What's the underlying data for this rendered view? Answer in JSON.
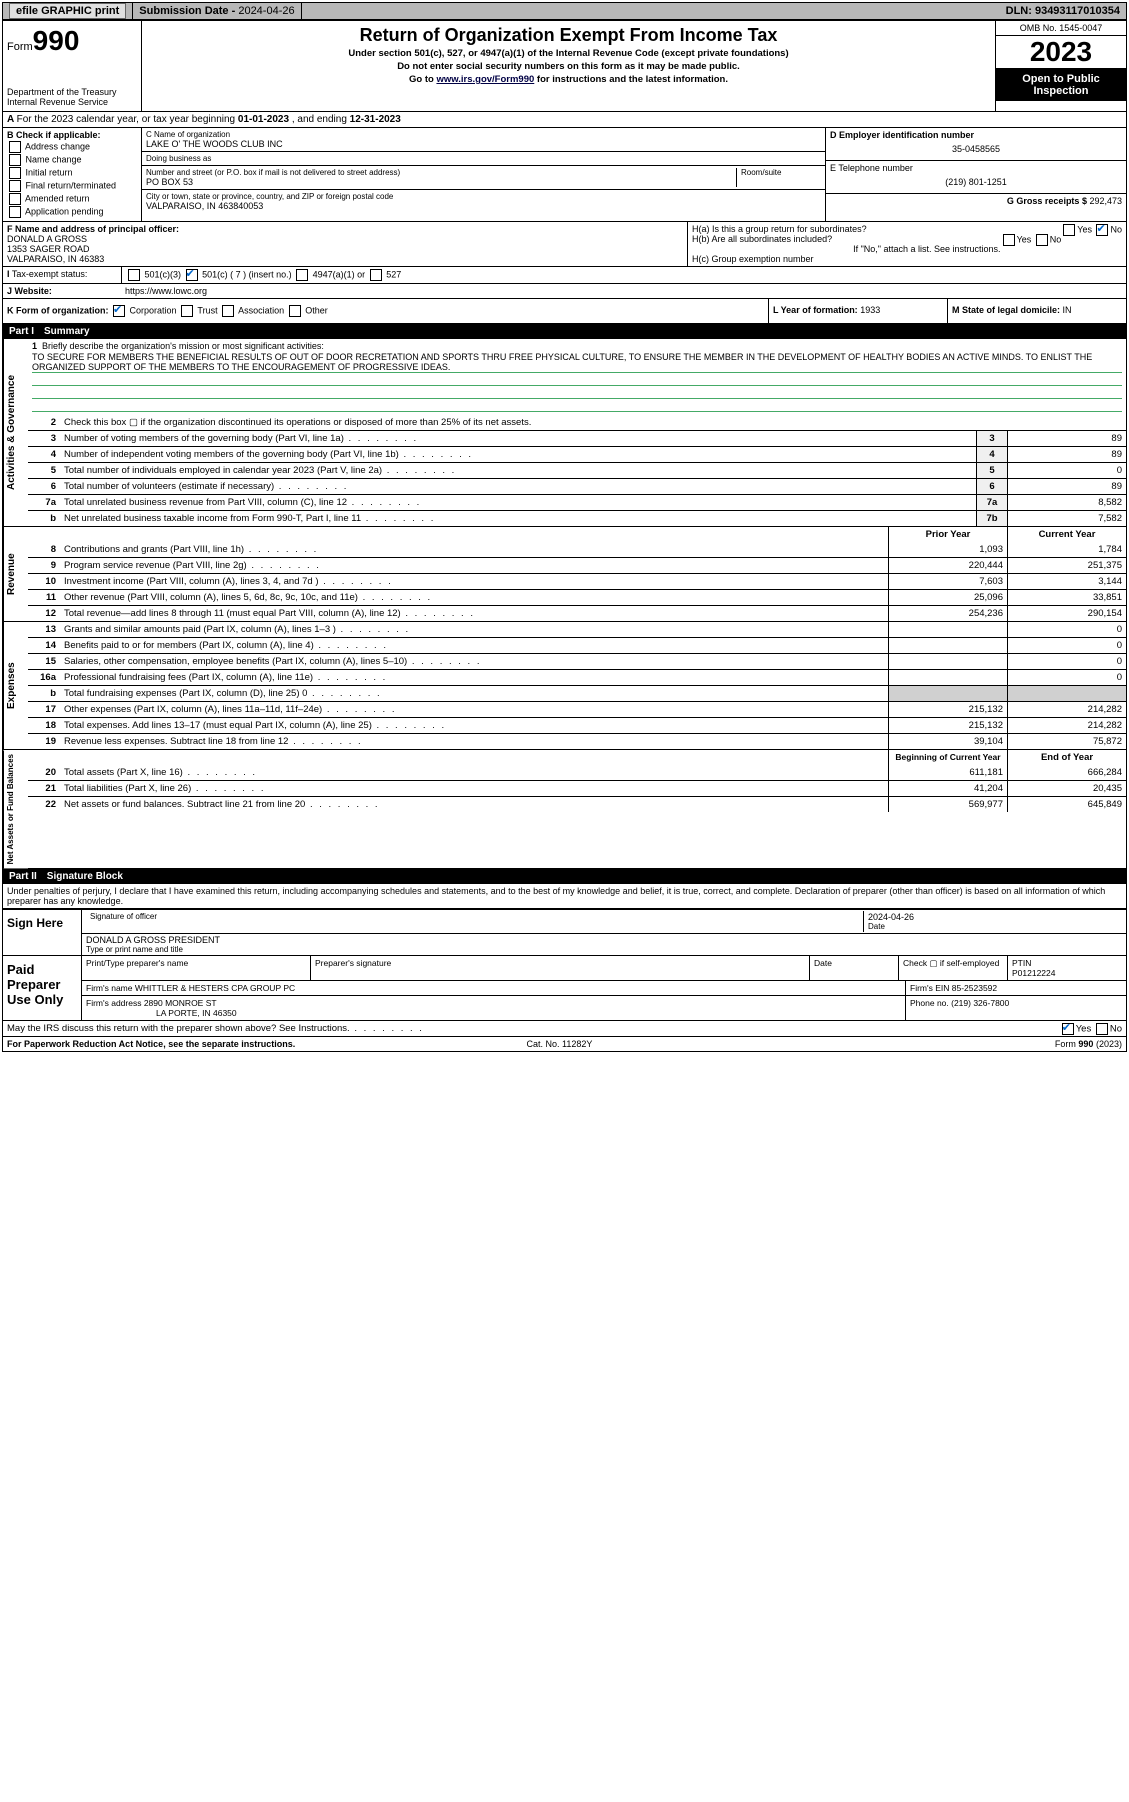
{
  "top": {
    "efile": "efile GRAPHIC print",
    "submission_label": "Submission Date - ",
    "submission_date": "2024-04-26",
    "dln_label": "DLN: ",
    "dln": "93493117010354"
  },
  "header": {
    "form_label": "Form",
    "form_num": "990",
    "dept": "Department of the Treasury\nInternal Revenue Service",
    "title": "Return of Organization Exempt From Income Tax",
    "sub1": "Under section 501(c), 527, or 4947(a)(1) of the Internal Revenue Code (except private foundations)",
    "sub2": "Do not enter social security numbers on this form as it may be made public.",
    "sub3_pre": "Go to ",
    "sub3_link": "www.irs.gov/Form990",
    "sub3_post": " for instructions and the latest information.",
    "omb": "OMB No. 1545-0047",
    "year": "2023",
    "inspect": "Open to Public Inspection"
  },
  "A": {
    "text": "For the 2023 calendar year, or tax year beginning ",
    "begin": "01-01-2023",
    "mid": " , and ending ",
    "end": "12-31-2023"
  },
  "B": {
    "label": "B Check if applicable:",
    "opts": [
      "Address change",
      "Name change",
      "Initial return",
      "Final return/terminated",
      "Amended return",
      "Application pending"
    ]
  },
  "C": {
    "name_label": "C Name of organization",
    "name": "LAKE O' THE WOODS CLUB INC",
    "dba_label": "Doing business as",
    "dba": "",
    "street_label": "Number and street (or P.O. box if mail is not delivered to street address)",
    "room_label": "Room/suite",
    "street": "PO BOX 53",
    "city_label": "City or town, state or province, country, and ZIP or foreign postal code",
    "city": "VALPARAISO, IN  463840053"
  },
  "D": {
    "label": "D Employer identification number",
    "val": "35-0458565"
  },
  "E": {
    "label": "E Telephone number",
    "val": "(219) 801-1251"
  },
  "G": {
    "label": "G Gross receipts $ ",
    "val": "292,473"
  },
  "F": {
    "label": "F Name and address of principal officer:",
    "name": "DONALD A GROSS",
    "addr1": "1353 SAGER ROAD",
    "addr2": "VALPARAISO, IN  46383"
  },
  "H": {
    "a": "H(a)  Is this a group return for subordinates?",
    "b": "H(b)  Are all subordinates included?",
    "b_note": "If \"No,\" attach a list. See instructions.",
    "c": "H(c)  Group exemption number ",
    "yes": "Yes",
    "no": "No"
  },
  "I": {
    "label": "Tax-exempt status:",
    "o1": "501(c)(3)",
    "o2": "501(c) ( 7 ) (insert no.)",
    "o3": "4947(a)(1) or",
    "o4": "527"
  },
  "J": {
    "label": "Website:",
    "val": "https://www.lowc.org"
  },
  "K": {
    "label": "K Form of organization:",
    "o": [
      "Corporation",
      "Trust",
      "Association",
      "Other"
    ]
  },
  "L": {
    "label": "L Year of formation: ",
    "val": "1933"
  },
  "M": {
    "label": "M State of legal domicile: ",
    "val": "IN"
  },
  "part1": {
    "num": "Part I",
    "title": "Summary"
  },
  "mission": {
    "q": "Briefly describe the organization's mission or most significant activities:",
    "text": "TO SECURE FOR MEMBERS THE BENEFICIAL RESULTS OF OUT OF DOOR RECRETATION AND SPORTS THRU FREE PHYSICAL CULTURE, TO ENSURE THE MEMBER IN THE DEVELOPMENT OF HEALTHY BODIES AN ACTIVE MINDS. TO ENLIST THE ORGANIZED SUPPORT OF THE MEMBERS TO THE ENCOURAGEMENT OF PROGRESSIVE IDEAS."
  },
  "lines_gov": [
    {
      "n": "2",
      "d": "Check this box ▢ if the organization discontinued its operations or disposed of more than 25% of its net assets.",
      "box": "",
      "v": ""
    },
    {
      "n": "3",
      "d": "Number of voting members of the governing body (Part VI, line 1a)",
      "box": "3",
      "v": "89"
    },
    {
      "n": "4",
      "d": "Number of independent voting members of the governing body (Part VI, line 1b)",
      "box": "4",
      "v": "89"
    },
    {
      "n": "5",
      "d": "Total number of individuals employed in calendar year 2023 (Part V, line 2a)",
      "box": "5",
      "v": "0"
    },
    {
      "n": "6",
      "d": "Total number of volunteers (estimate if necessary)",
      "box": "6",
      "v": "89"
    },
    {
      "n": "7a",
      "d": "Total unrelated business revenue from Part VIII, column (C), line 12",
      "box": "7a",
      "v": "8,582"
    },
    {
      "n": "b",
      "d": "Net unrelated business taxable income from Form 990-T, Part I, line 11",
      "box": "7b",
      "v": "7,582"
    }
  ],
  "col_headers": {
    "prior": "Prior Year",
    "current": "Current Year"
  },
  "lines_rev": [
    {
      "n": "8",
      "d": "Contributions and grants (Part VIII, line 1h)",
      "p": "1,093",
      "c": "1,784"
    },
    {
      "n": "9",
      "d": "Program service revenue (Part VIII, line 2g)",
      "p": "220,444",
      "c": "251,375"
    },
    {
      "n": "10",
      "d": "Investment income (Part VIII, column (A), lines 3, 4, and 7d )",
      "p": "7,603",
      "c": "3,144"
    },
    {
      "n": "11",
      "d": "Other revenue (Part VIII, column (A), lines 5, 6d, 8c, 9c, 10c, and 11e)",
      "p": "25,096",
      "c": "33,851"
    },
    {
      "n": "12",
      "d": "Total revenue—add lines 8 through 11 (must equal Part VIII, column (A), line 12)",
      "p": "254,236",
      "c": "290,154"
    }
  ],
  "lines_exp": [
    {
      "n": "13",
      "d": "Grants and similar amounts paid (Part IX, column (A), lines 1–3 )",
      "p": "",
      "c": "0"
    },
    {
      "n": "14",
      "d": "Benefits paid to or for members (Part IX, column (A), line 4)",
      "p": "",
      "c": "0"
    },
    {
      "n": "15",
      "d": "Salaries, other compensation, employee benefits (Part IX, column (A), lines 5–10)",
      "p": "",
      "c": "0"
    },
    {
      "n": "16a",
      "d": "Professional fundraising fees (Part IX, column (A), line 11e)",
      "p": "",
      "c": "0"
    },
    {
      "n": "b",
      "d": "Total fundraising expenses (Part IX, column (D), line 25) 0",
      "p": "BLANK",
      "c": "BLANK"
    },
    {
      "n": "17",
      "d": "Other expenses (Part IX, column (A), lines 11a–11d, 11f–24e)",
      "p": "215,132",
      "c": "214,282"
    },
    {
      "n": "18",
      "d": "Total expenses. Add lines 13–17 (must equal Part IX, column (A), line 25)",
      "p": "215,132",
      "c": "214,282"
    },
    {
      "n": "19",
      "d": "Revenue less expenses. Subtract line 18 from line 12",
      "p": "39,104",
      "c": "75,872"
    }
  ],
  "col_headers2": {
    "prior": "Beginning of Current Year",
    "current": "End of Year"
  },
  "lines_net": [
    {
      "n": "20",
      "d": "Total assets (Part X, line 16)",
      "p": "611,181",
      "c": "666,284"
    },
    {
      "n": "21",
      "d": "Total liabilities (Part X, line 26)",
      "p": "41,204",
      "c": "20,435"
    },
    {
      "n": "22",
      "d": "Net assets or fund balances. Subtract line 21 from line 20",
      "p": "569,977",
      "c": "645,849"
    }
  ],
  "vlabels": {
    "gov": "Activities & Governance",
    "rev": "Revenue",
    "exp": "Expenses",
    "net": "Net Assets or Fund Balances"
  },
  "part2": {
    "num": "Part II",
    "title": "Signature Block"
  },
  "perjury": "Under penalties of perjury, I declare that I have examined this return, including accompanying schedules and statements, and to the best of my knowledge and belief, it is true, correct, and complete. Declaration of preparer (other than officer) is based on all information of which preparer has any knowledge.",
  "sign": {
    "here": "Sign Here",
    "sig_label": "Signature of officer",
    "date_label": "Date",
    "date": "2024-04-26",
    "name": "DONALD A GROSS PRESIDENT",
    "name_label": "Type or print name and title"
  },
  "prep": {
    "title": "Paid Preparer Use Only",
    "h": [
      "Print/Type preparer's name",
      "Preparer's signature",
      "Date"
    ],
    "check_label": "Check ▢ if self-employed",
    "ptin_label": "PTIN",
    "ptin": "P01212224",
    "firm_name_label": "Firm's name ",
    "firm_name": "WHITTLER & HESTERS CPA GROUP PC",
    "firm_ein_label": "Firm's EIN ",
    "firm_ein": "85-2523592",
    "firm_addr_label": "Firm's address ",
    "firm_addr1": "2890 MONROE ST",
    "firm_addr2": "LA PORTE, IN  46350",
    "phone_label": "Phone no. ",
    "phone": "(219) 326-7800"
  },
  "discuss": {
    "q": "May the IRS discuss this return with the preparer shown above? See Instructions.",
    "yes": "Yes",
    "no": "No"
  },
  "footer": {
    "l": "For Paperwork Reduction Act Notice, see the separate instructions.",
    "m": "Cat. No. 11282Y",
    "r": "Form 990 (2023)"
  }
}
